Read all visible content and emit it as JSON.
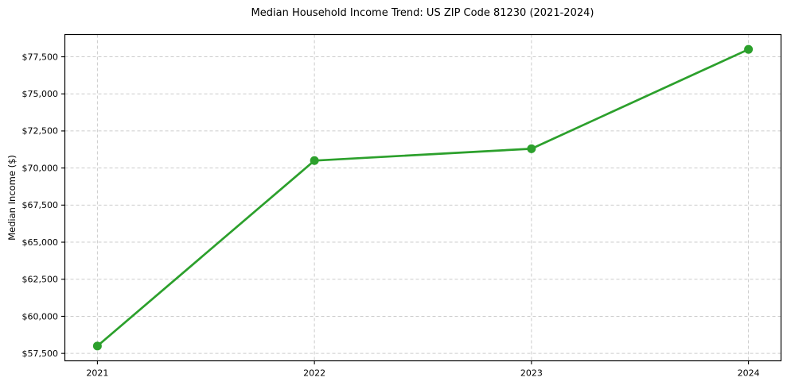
{
  "chart_data": {
    "type": "line",
    "title": "Median Household Income Trend: US ZIP Code 81230 (2021-2024)",
    "xlabel": "",
    "ylabel": "Median Income ($)",
    "x": [
      2021,
      2022,
      2023,
      2024
    ],
    "series": [
      {
        "name": "Median Household Income",
        "values": [
          58000,
          70500,
          71300,
          78000
        ]
      }
    ],
    "xlim": [
      2020.85,
      2024.15
    ],
    "ylim": [
      57000,
      79000
    ],
    "xticks": [
      {
        "value": 2021,
        "label": "2021"
      },
      {
        "value": 2022,
        "label": "2022"
      },
      {
        "value": 2023,
        "label": "2023"
      },
      {
        "value": 2024,
        "label": "2024"
      }
    ],
    "yticks": [
      {
        "value": 57500,
        "label": "$57,500"
      },
      {
        "value": 60000,
        "label": "$60,000"
      },
      {
        "value": 62500,
        "label": "$62,500"
      },
      {
        "value": 65000,
        "label": "$65,000"
      },
      {
        "value": 67500,
        "label": "$67,500"
      },
      {
        "value": 70000,
        "label": "$70,000"
      },
      {
        "value": 72500,
        "label": "$72,500"
      },
      {
        "value": 75000,
        "label": "$75,000"
      },
      {
        "value": 77500,
        "label": "$77,500"
      }
    ],
    "grid": "dashed",
    "legend_position": "none",
    "line_color": "#2ca02c",
    "marker": "circle",
    "grid_color": "#cccccc",
    "spine_color": "#000000",
    "text_color": "#000000",
    "background_color": "#ffffff"
  }
}
